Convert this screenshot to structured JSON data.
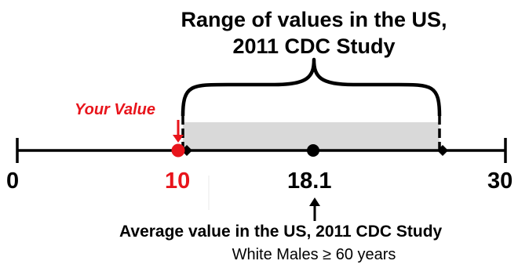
{
  "title": {
    "line1": "Range of values in the US,",
    "line2": "2011 CDC Study"
  },
  "your_value": {
    "label": "Your Value",
    "value": 10,
    "value_label": "10"
  },
  "axis": {
    "min_label": "0",
    "max_label": "30"
  },
  "average": {
    "value": 18.1,
    "value_label": "18.1",
    "caption": "Average  value in the US, 2011 CDC Study",
    "group": "White Males ≥ 60 years"
  },
  "chart_data": {
    "type": "range",
    "xlim": [
      0,
      30
    ],
    "range": [
      10,
      26
    ],
    "average": 18.1,
    "your_value": 10
  },
  "colors": {
    "highlight": "#e8141b",
    "range_fill": "#d9d9d9",
    "ink": "#000000"
  }
}
